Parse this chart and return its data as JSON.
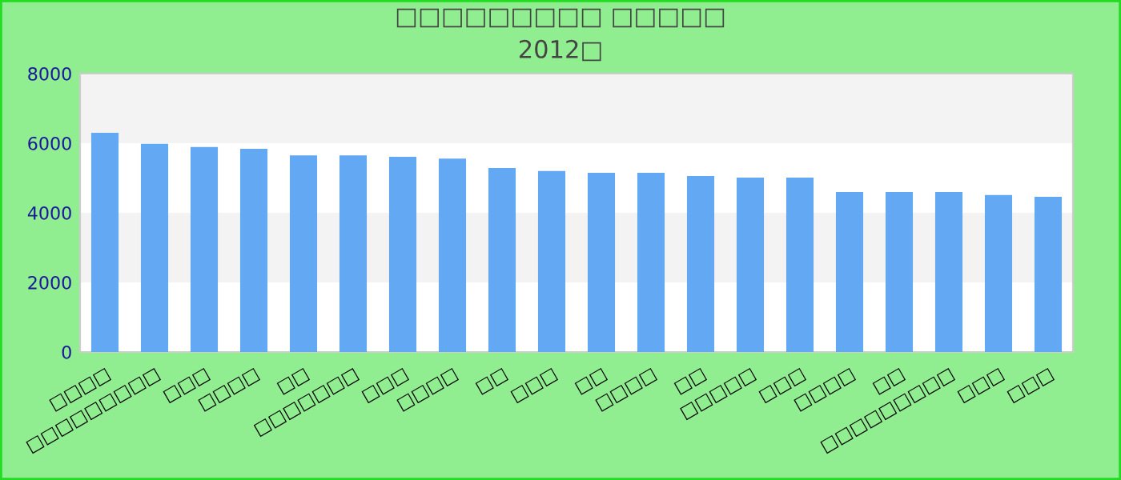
{
  "chart_data": {
    "type": "bar",
    "title": "□□□□□□□□□ □□□□□",
    "subtitle": "2012□",
    "categories": [
      "□□□□",
      "□□□□□□□□□",
      "□□□",
      "□□□□",
      "□□",
      "□□□□□□□",
      "□□□",
      "□□□□",
      "□□",
      "□□□",
      "□□",
      "□□□□",
      "□□",
      "□□□□□",
      "□□□",
      "□□□□",
      "□□",
      "□□□□□□□□□",
      "□□□",
      "□□□"
    ],
    "values": [
      6300,
      5980,
      5890,
      5840,
      5650,
      5650,
      5610,
      5560,
      5290,
      5200,
      5150,
      5150,
      5060,
      5010,
      5010,
      4600,
      4600,
      4600,
      4510,
      4460
    ],
    "color": "#62a8f2",
    "ylim": [
      0,
      8000
    ],
    "yticks": [
      0,
      2000,
      4000,
      6000,
      8000
    ],
    "bands": [
      {
        "axis": "y",
        "from": 2000,
        "to": 4000,
        "color": "#f3f3f3"
      },
      {
        "axis": "y",
        "from": 6000,
        "to": 8000,
        "color": "#f3f3f3"
      }
    ],
    "legend": false
  }
}
